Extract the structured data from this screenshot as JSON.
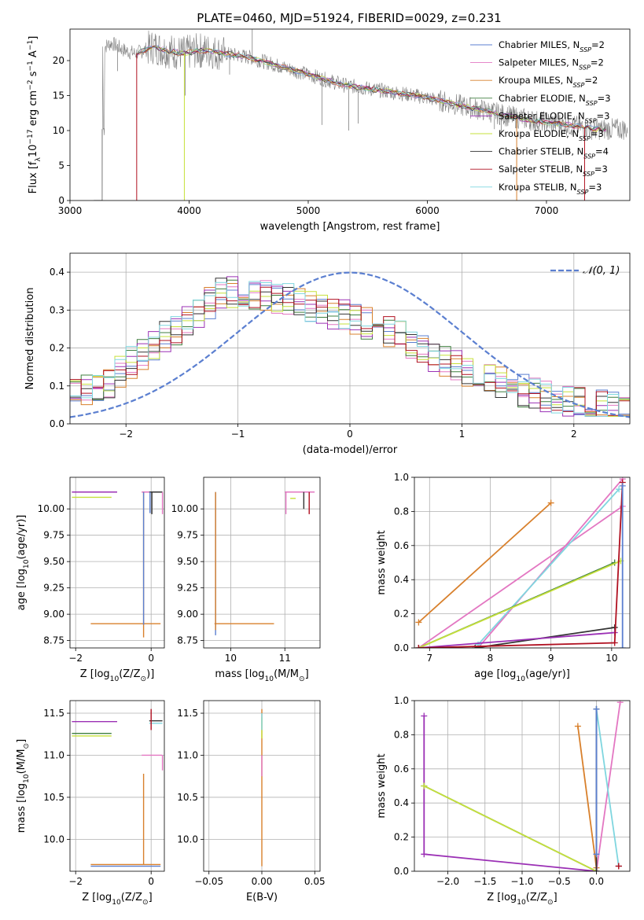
{
  "title": "PLATE=0460, MJD=51924, FIBERID=0029, z=0.231",
  "legend_top": [
    {
      "name": "Chabrier MILES",
      "nssp": "=2",
      "color": "#5b7fd0"
    },
    {
      "name": "Salpeter MILES",
      "nssp": "=2",
      "color": "#e377c2"
    },
    {
      "name": "Kroupa MILES",
      "nssp": "=2",
      "color": "#d8802c"
    },
    {
      "name": "Chabrier ELODIE",
      "nssp": "=3",
      "color": "#3f7f3f"
    },
    {
      "name": "Salpeter ELODIE",
      "nssp": "=3",
      "color": "#9b30b5"
    },
    {
      "name": "Kroupa ELODIE",
      "nssp": "=3",
      "color": "#c6e03b"
    },
    {
      "name": "Chabrier STELIB",
      "nssp": "=4",
      "color": "#333333"
    },
    {
      "name": "Salpeter STELIB",
      "nssp": "=3",
      "color": "#b01020"
    },
    {
      "name": "Kroupa STELIB",
      "nssp": "=3",
      "color": "#7fd6df"
    }
  ],
  "chart_data": [
    {
      "id": "spectrum",
      "type": "line",
      "xlabel": "wavelength [Angstrom, rest frame]",
      "ylabel_parts": [
        "Flux [f",
        "λ",
        "10",
        "−17",
        " erg cm",
        "−2",
        " s",
        "−1",
        " A",
        "−1",
        "]"
      ],
      "xlim": [
        3000,
        7700
      ],
      "ylim": [
        0,
        24.5
      ],
      "xticks": [
        3000,
        4000,
        5000,
        6000,
        7000
      ],
      "yticks": [
        0,
        5,
        10,
        15,
        20
      ],
      "grid": false,
      "data_points": [
        [
          3290,
          22.0
        ],
        [
          3350,
          22.5
        ],
        [
          3450,
          21.5
        ],
        [
          3550,
          21.0
        ],
        [
          3700,
          22.0
        ],
        [
          3800,
          21.5
        ],
        [
          3950,
          21.0
        ],
        [
          4100,
          21.5
        ],
        [
          4300,
          21.0
        ],
        [
          4500,
          20.5
        ],
        [
          4700,
          19.5
        ],
        [
          4900,
          18.5
        ],
        [
          5100,
          17.5
        ],
        [
          5300,
          16.5
        ],
        [
          5500,
          16.0
        ],
        [
          5700,
          15.5
        ],
        [
          5900,
          15.0
        ],
        [
          6100,
          14.3
        ],
        [
          6300,
          13.5
        ],
        [
          6500,
          12.8
        ],
        [
          6700,
          12.0
        ],
        [
          6900,
          11.4
        ],
        [
          7100,
          11.0
        ],
        [
          7300,
          10.5
        ],
        [
          7400,
          10.2
        ]
      ],
      "spikes": [
        [
          3400,
          18.5
        ],
        [
          3968,
          15.0
        ],
        [
          4100,
          19.0
        ],
        [
          4340,
          18.0
        ],
        [
          4530,
          25.0
        ],
        [
          5115,
          10.8
        ],
        [
          5340,
          10.0
        ],
        [
          5420,
          11.0
        ],
        [
          6563,
          10.2
        ],
        [
          6620,
          9.8
        ]
      ],
      "model_starts": [
        {
          "x": 3560,
          "color": "#b01020"
        },
        {
          "x": 3960,
          "color": "#c6e03b"
        },
        {
          "x": 3270,
          "color": "#808080"
        }
      ],
      "model_ends": [
        {
          "x": 6750,
          "color": "#d8802c"
        },
        {
          "x": 7320,
          "color": "#b01020"
        }
      ],
      "legend": "upper right"
    },
    {
      "id": "residuals",
      "type": "histogram",
      "xlabel": "(data-model)/error",
      "ylabel": "Normed distribution",
      "xlim": [
        -2.5,
        2.5
      ],
      "ylim": [
        0,
        0.45
      ],
      "xticks": [
        -2,
        -1,
        0,
        1,
        2
      ],
      "yticks": [
        0.0,
        0.1,
        0.2,
        0.3,
        0.4
      ],
      "grid": true,
      "bin_width": 0.1,
      "envelope": [
        [
          -2.5,
          0.085
        ],
        [
          -2.2,
          0.1
        ],
        [
          -2.0,
          0.15
        ],
        [
          -1.7,
          0.22
        ],
        [
          -1.5,
          0.26
        ],
        [
          -1.3,
          0.31
        ],
        [
          -1.1,
          0.35
        ],
        [
          -0.9,
          0.33
        ],
        [
          -0.7,
          0.34
        ],
        [
          -0.5,
          0.32
        ],
        [
          -0.3,
          0.31
        ],
        [
          -0.1,
          0.29
        ],
        [
          0.1,
          0.27
        ],
        [
          0.3,
          0.25
        ],
        [
          0.5,
          0.22
        ],
        [
          0.7,
          0.19
        ],
        [
          0.9,
          0.16
        ],
        [
          1.1,
          0.13
        ],
        [
          1.3,
          0.11
        ],
        [
          1.5,
          0.09
        ],
        [
          1.7,
          0.075
        ],
        [
          1.9,
          0.06
        ],
        [
          2.1,
          0.05
        ],
        [
          2.3,
          0.045
        ],
        [
          2.5,
          0.04
        ]
      ],
      "normal_label": "𝒩(0, 1)",
      "normal_color": "#5b7fd0",
      "legend": "upper right"
    },
    {
      "id": "age_vs_Z",
      "type": "errorbar",
      "xlabel_parts": [
        "Z [log",
        "10",
        "(Z/Z",
        "⊙",
        ")]"
      ],
      "ylabel_parts": [
        "age  [log",
        "10",
        "(age/yr)]"
      ],
      "xlim": [
        -2.15,
        0.35
      ],
      "ylim": [
        8.68,
        10.3
      ],
      "xticks": [
        -2,
        0
      ],
      "yticks": [
        8.75,
        9.0,
        9.25,
        9.5,
        9.75,
        10.0
      ],
      "grid": true,
      "hbars": [
        {
          "y": 10.16,
          "x0": -2.1,
          "x1": -0.9,
          "color": "#9b30b5"
        },
        {
          "y": 10.11,
          "x0": -2.1,
          "x1": -1.05,
          "color": "#c6e03b"
        },
        {
          "y": 10.16,
          "x0": -0.25,
          "x1": 0.3,
          "color": "#e377c2"
        },
        {
          "y": 10.16,
          "x0": -0.05,
          "x1": 0.3,
          "color": "#333333"
        },
        {
          "y": 8.91,
          "x0": -1.6,
          "x1": 0.25,
          "color": "#d8802c"
        }
      ],
      "vbars": [
        {
          "x": -0.2,
          "y0": 10.16,
          "y1": 8.78,
          "color": "#d8802c"
        },
        {
          "x": -0.2,
          "y0": 10.16,
          "y1": 8.9,
          "color": "#5b7fd0"
        },
        {
          "x": -0.03,
          "y0": 10.16,
          "y1": 9.96,
          "color": "#5b7fd0"
        },
        {
          "x": 0.02,
          "y0": 10.16,
          "y1": 9.95,
          "color": "#333333"
        },
        {
          "x": 0.3,
          "y0": 10.16,
          "y1": 9.95,
          "color": "#e377c2"
        }
      ]
    },
    {
      "id": "age_vs_mass",
      "type": "errorbar",
      "xlabel_parts": [
        "mass [log",
        "10",
        "(M/M",
        "⊙",
        "]"
      ],
      "ylabel_parts": [],
      "xlim": [
        9.5,
        11.65
      ],
      "ylim": [
        8.68,
        10.3
      ],
      "xticks": [
        10,
        11
      ],
      "yticks": [
        8.75,
        9.0,
        9.25,
        9.5,
        9.75,
        10.0
      ],
      "grid": true,
      "hbars": [
        {
          "y": 8.91,
          "x0": 9.7,
          "x1": 10.8,
          "color": "#d8802c"
        },
        {
          "y": 10.16,
          "x0": 11.0,
          "x1": 11.55,
          "color": "#e377c2"
        },
        {
          "y": 10.1,
          "x0": 11.1,
          "x1": 11.2,
          "color": "#c6e03b"
        }
      ],
      "vbars": [
        {
          "x": 9.72,
          "y0": 10.16,
          "y1": 8.8,
          "color": "#5b7fd0"
        },
        {
          "x": 9.72,
          "y0": 10.16,
          "y1": 8.85,
          "color": "#d8802c"
        },
        {
          "x": 11.02,
          "y0": 10.16,
          "y1": 9.95,
          "color": "#e377c2"
        },
        {
          "x": 11.45,
          "y0": 10.16,
          "y1": 9.95,
          "color": "#b01020"
        },
        {
          "x": 11.35,
          "y0": 10.16,
          "y1": 10.0,
          "color": "#333333"
        }
      ]
    },
    {
      "id": "weight_vs_age",
      "type": "line",
      "xlabel_parts": [
        "age  [log",
        "10",
        "(age/yr)]"
      ],
      "ylabel": "mass weight",
      "xlim": [
        6.75,
        10.3
      ],
      "ylim": [
        0,
        1.0
      ],
      "xticks": [
        7,
        8,
        9,
        10
      ],
      "yticks": [
        0.0,
        0.2,
        0.4,
        0.6,
        0.8,
        1.0
      ],
      "grid": true,
      "series": [
        {
          "color": "#d8802c",
          "pts": [
            [
              6.82,
              0.15
            ],
            [
              9.0,
              0.85
            ]
          ]
        },
        {
          "color": "#e377c2",
          "pts": [
            [
              7.8,
              0.0
            ],
            [
              10.18,
              0.99
            ]
          ]
        },
        {
          "color": "#e377c2",
          "pts": [
            [
              6.82,
              0.0
            ],
            [
              10.18,
              0.83
            ]
          ]
        },
        {
          "color": "#7fd6df",
          "pts": [
            [
              7.8,
              0.02
            ],
            [
              10.12,
              0.93
            ]
          ]
        },
        {
          "color": "#3f7f3f",
          "pts": [
            [
              6.82,
              0.0
            ],
            [
              10.05,
              0.5
            ]
          ]
        },
        {
          "color": "#c6e03b",
          "pts": [
            [
              6.82,
              0.0
            ],
            [
              10.15,
              0.51
            ]
          ]
        },
        {
          "color": "#333333",
          "pts": [
            [
              7.75,
              0.0
            ],
            [
              10.05,
              0.12
            ]
          ]
        },
        {
          "color": "#9b30b5",
          "pts": [
            [
              6.82,
              0.0
            ],
            [
              10.05,
              0.09
            ]
          ]
        },
        {
          "color": "#b01020",
          "pts": [
            [
              6.82,
              0.0
            ],
            [
              10.05,
              0.03
            ],
            [
              10.18,
              0.97
            ]
          ]
        },
        {
          "color": "#5b7fd0",
          "pts": [
            [
              10.18,
              0.0
            ],
            [
              10.18,
              0.95
            ]
          ]
        }
      ]
    },
    {
      "id": "mass_vs_Z",
      "type": "errorbar",
      "xlabel_parts": [
        "Z [log",
        "10",
        "(Z/Z",
        "⊙",
        "]"
      ],
      "ylabel_parts": [
        "mass [log",
        "10",
        "(M/M",
        "⊙",
        "]"
      ],
      "xlim": [
        -2.15,
        0.35
      ],
      "ylim": [
        9.62,
        11.65
      ],
      "xticks": [
        -2,
        0
      ],
      "yticks": [
        10.0,
        10.5,
        11.0,
        11.5
      ],
      "grid": true,
      "hbars": [
        {
          "y": 11.4,
          "x0": -2.1,
          "x1": -0.9,
          "color": "#9b30b5"
        },
        {
          "y": 11.26,
          "x0": -2.1,
          "x1": -1.05,
          "color": "#3f7f3f"
        },
        {
          "y": 11.23,
          "x0": -2.1,
          "x1": -1.05,
          "color": "#c6e03b"
        },
        {
          "y": 11.0,
          "x0": -0.25,
          "x1": 0.3,
          "color": "#e377c2"
        },
        {
          "y": 11.41,
          "x0": -0.05,
          "x1": 0.3,
          "color": "#333333"
        },
        {
          "y": 11.38,
          "x0": -0.05,
          "x1": 0.3,
          "color": "#7fd6df"
        },
        {
          "y": 9.7,
          "x0": -1.6,
          "x1": 0.25,
          "color": "#d8802c"
        },
        {
          "y": 9.68,
          "x0": -1.6,
          "x1": 0.25,
          "color": "#5b7fd0"
        }
      ],
      "vbars": [
        {
          "x": -0.2,
          "y0": 10.78,
          "y1": 9.7,
          "color": "#d8802c"
        },
        {
          "x": 0.3,
          "y0": 11.0,
          "y1": 10.82,
          "color": "#e377c2"
        },
        {
          "x": 0.0,
          "y0": 11.55,
          "y1": 11.3,
          "color": "#b01020"
        }
      ]
    },
    {
      "id": "mass_vs_EBV",
      "type": "errorbar",
      "xlabel": "E(B-V)",
      "ylabel_parts": [],
      "xlim": [
        -0.055,
        0.055
      ],
      "ylim": [
        9.62,
        11.65
      ],
      "xticks": [
        -0.05,
        0.0,
        0.05
      ],
      "yticks": [
        10.0,
        10.5,
        11.0,
        11.5
      ],
      "grid": true,
      "hbars": [],
      "vbars": [
        {
          "x": 0.0,
          "y0": 11.55,
          "y1": 9.68,
          "color": "#d8802c"
        },
        {
          "x": 0.0,
          "y0": 11.0,
          "y1": 10.75,
          "color": "#e377c2"
        },
        {
          "x": 0.0,
          "y0": 11.45,
          "y1": 11.2,
          "color": "#c6e03b"
        },
        {
          "x": 0.0,
          "y0": 11.5,
          "y1": 11.3,
          "color": "#7fd6df"
        }
      ]
    },
    {
      "id": "weight_vs_Z",
      "type": "line",
      "xlabel_parts": [
        "Z [log",
        "10",
        "(Z/Z",
        "⊙",
        "]"
      ],
      "ylabel": "mass weight",
      "xlim": [
        -2.45,
        0.45
      ],
      "ylim": [
        0,
        1.0
      ],
      "xticks": [
        -2.0,
        -1.5,
        -1.0,
        -0.5,
        0.0
      ],
      "yticks": [
        0.0,
        0.2,
        0.4,
        0.6,
        0.8,
        1.0
      ],
      "grid": true,
      "series": [
        {
          "color": "#9b30b5",
          "pts": [
            [
              -2.32,
              0.91
            ],
            [
              -2.32,
              0.1
            ],
            [
              0.0,
              0.0
            ]
          ]
        },
        {
          "color": "#3f7f3f",
          "pts": [
            [
              -2.32,
              0.5
            ],
            [
              0.0,
              0.0
            ]
          ]
        },
        {
          "color": "#c6e03b",
          "pts": [
            [
              -2.32,
              0.5
            ],
            [
              0.0,
              0.0
            ]
          ]
        },
        {
          "color": "#d8802c",
          "pts": [
            [
              -0.25,
              0.85
            ],
            [
              0.0,
              0.02
            ]
          ]
        },
        {
          "color": "#e377c2",
          "pts": [
            [
              0.0,
              0.0
            ],
            [
              0.32,
              0.99
            ]
          ]
        },
        {
          "color": "#7fd6df",
          "pts": [
            [
              0.0,
              0.95
            ],
            [
              0.3,
              0.03
            ]
          ]
        },
        {
          "color": "#333333",
          "pts": [
            [
              0.0,
              0.95
            ],
            [
              0.0,
              0.0
            ]
          ]
        },
        {
          "color": "#5b7fd0",
          "pts": [
            [
              0.0,
              0.95
            ],
            [
              0.0,
              0.1
            ]
          ]
        },
        {
          "color": "#b01020",
          "pts": [
            [
              0.3,
              0.03
            ],
            [
              0.3,
              0.03
            ]
          ]
        }
      ]
    }
  ]
}
